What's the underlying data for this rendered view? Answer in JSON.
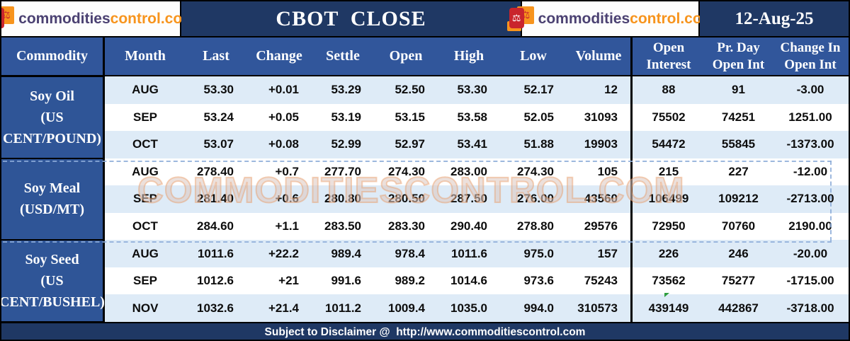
{
  "top_bar": {
    "logo": {
      "part1": "commodities",
      "part2": "control.com",
      "scales_icon": "⚖"
    },
    "title": "CBOT  CLOSE",
    "date": "12-Aug-25"
  },
  "header": {
    "commodity": "Commodity",
    "main_cols": [
      "Month",
      "Last",
      "Change",
      "Settle",
      "Open",
      "High",
      "Low",
      "Volume"
    ],
    "right_cols": [
      [
        "Open",
        "Interest"
      ],
      [
        "Pr. Day",
        "Open Int"
      ],
      [
        "Change In",
        "Open Int"
      ]
    ]
  },
  "groups": [
    {
      "label_lines": [
        "Soy Oil",
        "(US",
        "CENT/POUND)"
      ],
      "rows": [
        [
          "AUG",
          "53.30",
          "+0.01",
          "53.29",
          "52.50",
          "53.30",
          "52.17",
          "12",
          "88",
          "91",
          "-3.00"
        ],
        [
          "SEP",
          "53.24",
          "+0.05",
          "53.19",
          "53.15",
          "53.58",
          "52.05",
          "31093",
          "75502",
          "74251",
          "1251.00"
        ],
        [
          "OCT",
          "53.07",
          "+0.08",
          "52.99",
          "52.97",
          "53.41",
          "51.88",
          "19903",
          "54472",
          "55845",
          "-1373.00"
        ]
      ]
    },
    {
      "label_lines": [
        "Soy Meal",
        "(USD/MT)"
      ],
      "rows": [
        [
          "AUG",
          "278.40",
          "+0.7",
          "277.70",
          "274.30",
          "283.00",
          "274.30",
          "105",
          "215",
          "227",
          "-12.00"
        ],
        [
          "SEP",
          "281.40",
          "+0.6",
          "280.80",
          "280.50",
          "287.50",
          "276.00",
          "43560",
          "106499",
          "109212",
          "-2713.00"
        ],
        [
          "OCT",
          "284.60",
          "+1.1",
          "283.50",
          "283.30",
          "290.40",
          "278.80",
          "29576",
          "72950",
          "70760",
          "2190.00"
        ]
      ]
    },
    {
      "label_lines": [
        "Soy Seed",
        "(US",
        "CENT/BUSHEL)"
      ],
      "rows": [
        [
          "AUG",
          "1011.6",
          "+22.2",
          "989.4",
          "978.4",
          "1011.6",
          "975.0",
          "157",
          "226",
          "246",
          "-20.00"
        ],
        [
          "SEP",
          "1012.6",
          "+21",
          "991.6",
          "989.2",
          "1014.6",
          "973.6",
          "75243",
          "73562",
          "75277",
          "-1715.00"
        ],
        [
          "NOV",
          "1032.6",
          "+21.4",
          "1011.2",
          "1009.4",
          "1035.0",
          "994.0",
          "310573",
          "439149",
          "442867",
          "-3718.00"
        ]
      ]
    }
  ],
  "watermark": "COMMODITIESCONTROL.COM",
  "footer": {
    "text": "Subject to Disclaimer @  http://www.commoditiescontrol.com"
  },
  "colors": {
    "navy": "#1F3864",
    "header_blue": "#31569B",
    "commodity_blue": "#2F5597",
    "stripe_light": "#DEEBF7",
    "stripe_white": "#FFFFFF",
    "logo_purple": "#4B4172",
    "logo_orange": "#F7941D",
    "watermark_orange": "#EB9458",
    "marker_green": "#2E9E3E"
  }
}
